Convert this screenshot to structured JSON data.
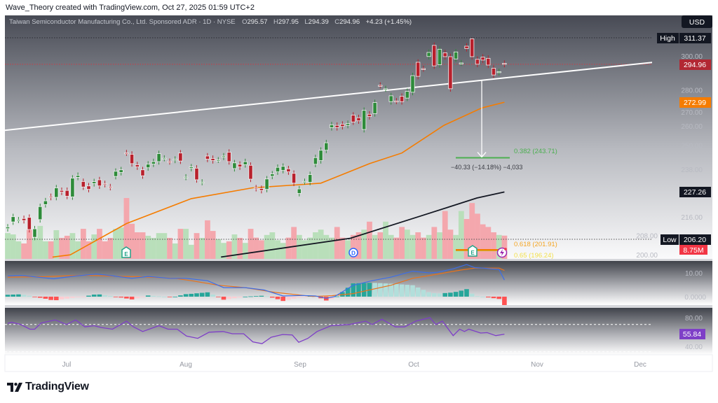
{
  "credit": "Wave_Theory created with TradingView.com, Oct 27, 2025 01:59 UTC+2",
  "header": {
    "symbol": "Taiwan Semiconductor Manufacturing Co., Ltd. Sponsored ADR · 1D · NYSE",
    "o_label": "O",
    "o": "295.57",
    "h_label": "H",
    "h": "297.95",
    "l_label": "L",
    "l": "294.39",
    "c_label": "C",
    "c": "294.96",
    "change": "+4.23 (+1.45%)"
  },
  "currency_button": "USD",
  "logo_text": "TradingView",
  "colors": {
    "up": "#2e8b3a",
    "down": "#b8202c",
    "ema50": "#f57c00",
    "ma200": "#131722",
    "trend": "#ffffff",
    "vol_up": "#b9dfba",
    "vol_down": "#f4a7ad",
    "macd": "#3d6ee8",
    "signal": "#e8731c",
    "rsi": "#7e3fc7",
    "last_price": "#b22833",
    "vol_tag": "#f23645"
  },
  "tags": {
    "high_label": "High",
    "high": "311.37",
    "last": "294.96",
    "ema": "272.99",
    "ma200": "227.26",
    "low_label": "Low",
    "low": "206.20",
    "volume": "8.75M",
    "rsi": "55.84"
  },
  "annotations": {
    "measure": "−40.33 (−14.18%) −4,033",
    "fib_382": "0.382 (243.71)",
    "fib_618": "0.618 (201.91)",
    "fib_65": "0.65 (196.24)",
    "earnings_1": "E",
    "dividend": "D",
    "earnings_2": "E"
  },
  "macd_axis": [
    "10.00",
    "0.0000"
  ],
  "rsi_axis": [
    "80.00",
    "40.00"
  ],
  "chart_data": {
    "type": "candlestick",
    "title": "Taiwan Semiconductor Manufacturing Co., Ltd. Sponsored ADR · 1D · NYSE",
    "scale": "log",
    "ylim": [
      196,
      318
    ],
    "price_axis_labels": [
      300,
      280,
      270,
      260,
      250,
      238,
      216,
      208,
      200
    ],
    "price_axis_text": [
      "300.00",
      "280.00",
      "270.00",
      "260.00",
      "250.00",
      "238.00",
      "216.00",
      "208.00",
      "200.00"
    ],
    "x_labels": [
      "Jul",
      "Aug",
      "Sep",
      "Oct",
      "Nov",
      "Dec"
    ],
    "open": [
      210.9,
      213.8,
      214.6,
      215.3,
      215.8,
      207.2,
      214.8,
      221.5,
      225.2,
      224.8,
      228.0,
      228.0,
      225.0,
      234.2,
      232.2,
      230.1,
      231.2,
      233.0,
      231.2,
      229.7,
      234.6,
      236.5,
      246.2,
      245.5,
      240.3,
      237.8,
      238.8,
      240.6,
      241.8,
      243.4,
      241.9,
      242.5,
      246.1,
      234.2,
      238.5,
      238.6,
      231.8,
      244.6,
      243.4,
      242.6,
      244.0,
      246.5,
      238.4,
      240.5,
      240.3,
      240.0,
      229.2,
      228.9,
      228.5,
      234.7,
      236.8,
      237.5,
      238.3,
      236.1,
      226.6,
      232.1,
      231.8,
      240.5,
      242.3,
      247.5,
      259.2,
      260.4,
      261.0,
      260.4,
      265.9,
      264.5,
      258.2,
      266.4,
      266.7,
      282.6,
      280.5,
      273.3,
      273.7,
      276.3,
      275.3,
      278.6,
      296.2,
      292.4,
      299.7,
      306.6,
      294.7,
      302.0,
      299.6,
      298.2,
      295.7,
      306.1,
      310.7,
      298.0,
      299.3,
      298.6,
      292.6,
      290.0,
      295.57
    ],
    "close": [
      211.6,
      216.1,
      214.7,
      214.4,
      210.5,
      210.8,
      220.6,
      223.2,
      224.8,
      229.2,
      227.2,
      225.3,
      233.8,
      235.1,
      229.6,
      228.5,
      232.1,
      230.1,
      230.8,
      229.4,
      237.1,
      237.8,
      246.1,
      240.8,
      239.2,
      234.9,
      240.6,
      241.8,
      245.8,
      243.5,
      241.8,
      243.0,
      242.1,
      234.3,
      239.2,
      233.0,
      231.9,
      243.0,
      242.3,
      242.6,
      244.6,
      241.8,
      241.2,
      239.2,
      241.8,
      233.3,
      228.9,
      228.0,
      233.4,
      235.8,
      239.0,
      239.5,
      236.8,
      231.4,
      228.7,
      232.2,
      235.5,
      243.8,
      247.5,
      251.3,
      260.7,
      259.2,
      259.8,
      261.4,
      262.2,
      262.8,
      268.5,
      265.1,
      272.8,
      282.5,
      280.6,
      276.6,
      273.6,
      273.3,
      279.1,
      288.2,
      287.8,
      292.3,
      302.2,
      294.0,
      304.2,
      299.6,
      280.6,
      302.5,
      295.8,
      304.6,
      299.6,
      295.0,
      297.5,
      294.5,
      288.6,
      290.6,
      294.96
    ],
    "volume_millions": [
      9.7,
      9.2,
      6.6,
      5.8,
      11,
      7.9,
      12.4,
      6.6,
      6.6,
      10.8,
      7.9,
      8.7,
      9.7,
      6.6,
      11.3,
      6.6,
      9.2,
      11.3,
      6.6,
      7.9,
      11.3,
      11.8,
      22.9,
      13.2,
      10,
      10,
      8.7,
      7.9,
      9.7,
      9.7,
      7.9,
      5.8,
      11.3,
      11.3,
      5.3,
      9.7,
      7.9,
      14.5,
      10.5,
      7.4,
      6,
      6.6,
      9.2,
      7.9,
      6,
      11.3,
      8,
      7,
      9,
      10,
      7,
      6,
      8,
      12,
      9,
      7,
      8,
      10,
      11,
      9,
      8,
      12,
      8,
      7,
      9,
      10,
      11,
      14,
      9,
      10,
      14,
      9,
      8,
      12,
      11,
      9,
      10,
      8,
      9,
      12,
      10,
      18,
      11,
      9,
      18,
      15,
      21,
      17,
      13,
      12,
      10,
      9,
      8.75
    ],
    "ema50": [
      [
        8.3,
        199.0
      ],
      [
        11.6,
        199.9
      ],
      [
        22,
        213.1
      ],
      [
        34,
        224.2
      ],
      [
        45.3,
        229.2
      ],
      [
        53,
        230.5
      ],
      [
        58,
        231.4
      ],
      [
        67,
        240.8
      ],
      [
        73,
        246.1
      ],
      [
        80.8,
        260.4
      ],
      [
        87.8,
        269.8
      ],
      [
        92,
        272.99
      ]
    ],
    "ma200": [
      [
        39.5,
        199.0
      ],
      [
        63.5,
        206.8
      ],
      [
        76.5,
        216.4
      ],
      [
        81.7,
        220.4
      ],
      [
        86.9,
        224.5
      ],
      [
        92,
        227.26
      ]
    ],
    "trendline": [
      [
        -1.4,
        257.5
      ],
      [
        122,
        297
      ]
    ],
    "measure_arrow": {
      "index": 87.8,
      "from": 285.4,
      "to": 243.71
    },
    "fib_levels": [
      {
        "ratio": 0.382,
        "price": 243.71
      },
      {
        "ratio": 0.618,
        "price": 201.91
      },
      {
        "ratio": 0.65,
        "price": 196.24
      }
    ],
    "macd": {
      "macd_line": [
        [
          0,
          8.7
        ],
        [
          2.5,
          8.9
        ],
        [
          8.5,
          7.5
        ],
        [
          12.6,
          8.7
        ],
        [
          16.5,
          9.5
        ],
        [
          19.5,
          8.7
        ],
        [
          23,
          7.7
        ],
        [
          26,
          8.5
        ],
        [
          30,
          7.7
        ],
        [
          33,
          7.7
        ],
        [
          37,
          6.7
        ],
        [
          40,
          3.8
        ],
        [
          44,
          3.8
        ],
        [
          47.5,
          2.8
        ],
        [
          51,
          0.3
        ],
        [
          54.5,
          0.5
        ],
        [
          57,
          0.3
        ],
        [
          59,
          -0.7
        ],
        [
          60.5,
          0
        ],
        [
          64,
          4.8
        ],
        [
          67.5,
          6.7
        ],
        [
          71,
          8.2
        ],
        [
          75,
          10.7
        ],
        [
          78,
          10.0
        ],
        [
          79.5,
          10.2
        ],
        [
          82.5,
          11.7
        ],
        [
          85,
          13.5
        ],
        [
          86.5,
          12.2
        ],
        [
          88,
          12.0
        ],
        [
          91,
          11.4
        ],
        [
          92,
          7.0
        ]
      ],
      "signal_line": [
        [
          0,
          8.2
        ],
        [
          7,
          8.4
        ],
        [
          14,
          9.0
        ],
        [
          21,
          8.5
        ],
        [
          24,
          8.4
        ],
        [
          31,
          7.7
        ],
        [
          34,
          6.7
        ],
        [
          39,
          4.8
        ],
        [
          44,
          3.8
        ],
        [
          49.5,
          1.8
        ],
        [
          56.5,
          0.1
        ],
        [
          60,
          0.4
        ],
        [
          64,
          1.3
        ],
        [
          71,
          4.8
        ],
        [
          75,
          7.7
        ],
        [
          79.5,
          9.4
        ],
        [
          84,
          11.2
        ],
        [
          86.5,
          12.0
        ],
        [
          91,
          12.0
        ],
        [
          92,
          11.0
        ]
      ],
      "axis": [
        10,
        0
      ]
    },
    "rsi": {
      "values": [
        [
          0,
          71.6
        ],
        [
          0.7,
          73.2
        ],
        [
          2.4,
          69.9
        ],
        [
          4.1,
          63.1
        ],
        [
          5,
          63.1
        ],
        [
          6.2,
          72.2
        ],
        [
          8.8,
          76.6
        ],
        [
          10.9,
          69.9
        ],
        [
          12.6,
          76.6
        ],
        [
          14.3,
          66.5
        ],
        [
          16,
          68.2
        ],
        [
          17.3,
          65.5
        ],
        [
          19.4,
          63.1
        ],
        [
          22,
          74.9
        ],
        [
          23.3,
          66.5
        ],
        [
          25,
          59.7
        ],
        [
          28,
          68.2
        ],
        [
          29.7,
          63.1
        ],
        [
          31.4,
          63.1
        ],
        [
          33.1,
          53.0
        ],
        [
          35.2,
          49.6
        ],
        [
          37.3,
          58.7
        ],
        [
          39.9,
          59.7
        ],
        [
          41.6,
          56.4
        ],
        [
          43.7,
          56.4
        ],
        [
          45.4,
          44.5
        ],
        [
          47.1,
          41.8
        ],
        [
          48.8,
          51.3
        ],
        [
          50.9,
          55.3
        ],
        [
          52.7,
          54.7
        ],
        [
          53.9,
          43.9
        ],
        [
          55.6,
          49.6
        ],
        [
          57.3,
          59.7
        ],
        [
          59.9,
          68.2
        ],
        [
          61.2,
          68.9
        ],
        [
          63.3,
          69.9
        ],
        [
          66.3,
          74.9
        ],
        [
          67.5,
          69.9
        ],
        [
          69.3,
          77.6
        ],
        [
          71.8,
          66.5
        ],
        [
          73.5,
          66.5
        ],
        [
          75.6,
          74.9
        ],
        [
          78.2,
          80.0
        ],
        [
          79.3,
          69.9
        ],
        [
          80.5,
          74.9
        ],
        [
          82.5,
          53.6
        ],
        [
          83.7,
          63.1
        ],
        [
          84.6,
          59.7
        ],
        [
          85.4,
          63.1
        ],
        [
          87.6,
          57.4
        ],
        [
          88.8,
          58.0
        ],
        [
          90.4,
          53.6
        ],
        [
          92,
          55.84
        ]
      ],
      "bands": [
        70,
        30
      ],
      "axis": [
        80,
        40
      ]
    }
  }
}
